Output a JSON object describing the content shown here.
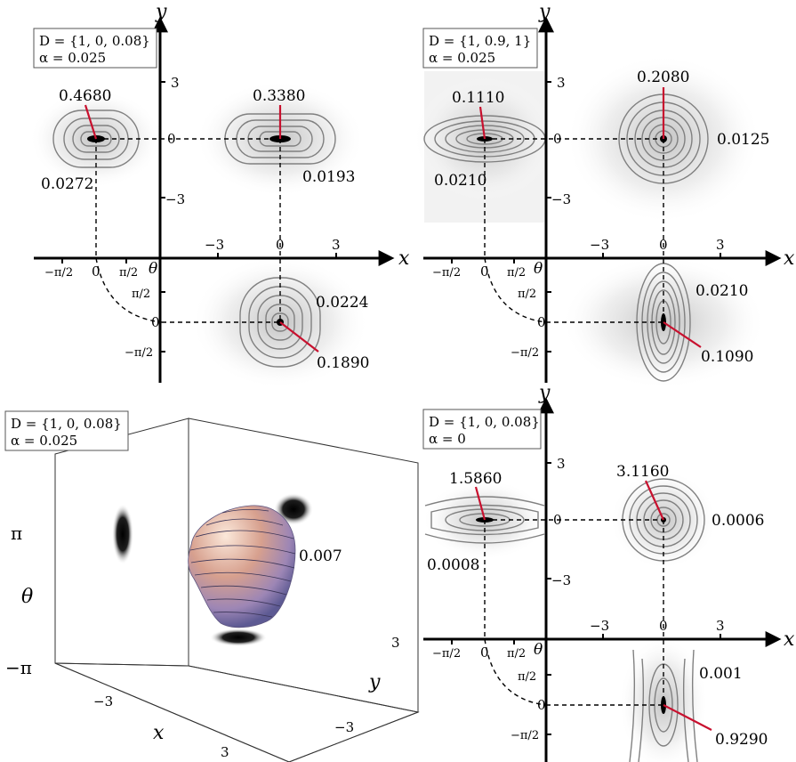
{
  "panels": [
    {
      "legend_line1": "D = {1, 0, 0.08}",
      "legend_line2": "α = 0.025",
      "peak_labels": [
        "0.4680",
        "0.3380",
        "0.1890"
      ],
      "contour_labels": [
        "0.0272",
        "0.0193",
        "0.0224"
      ]
    },
    {
      "legend_line1": "D = {1, 0.9, 1}",
      "legend_line2": "α = 0.025",
      "peak_labels": [
        "0.1110",
        "0.2080",
        "0.1090"
      ],
      "contour_labels": [
        "0.0210",
        "0.0125",
        "0.0210"
      ]
    },
    {
      "legend_line1": "D = {1, 0, 0.08}",
      "legend_line2": "α = 0",
      "peak_labels": [
        "1.5860",
        "3.1160",
        "0.9290"
      ],
      "contour_labels": [
        "0.0008",
        "0.0006",
        "0.001"
      ]
    }
  ],
  "panel3d": {
    "legend_line1": "D = {1, 0, 0.08}",
    "legend_line2": "α = 0.025",
    "iso_label": "0.007",
    "axis_x": "x",
    "axis_y": "y",
    "axis_theta": "θ",
    "theta_ticks": [
      "π",
      "−π"
    ],
    "x_ticks": [
      "−3",
      "3"
    ],
    "y_ticks": [
      "3",
      "−3"
    ]
  },
  "axes": {
    "x": "x",
    "y": "y",
    "theta": "θ",
    "xy_ticks": [
      "−3",
      "0",
      "3"
    ],
    "theta_ticks": [
      "−π/2",
      "0",
      "π/2"
    ]
  }
}
